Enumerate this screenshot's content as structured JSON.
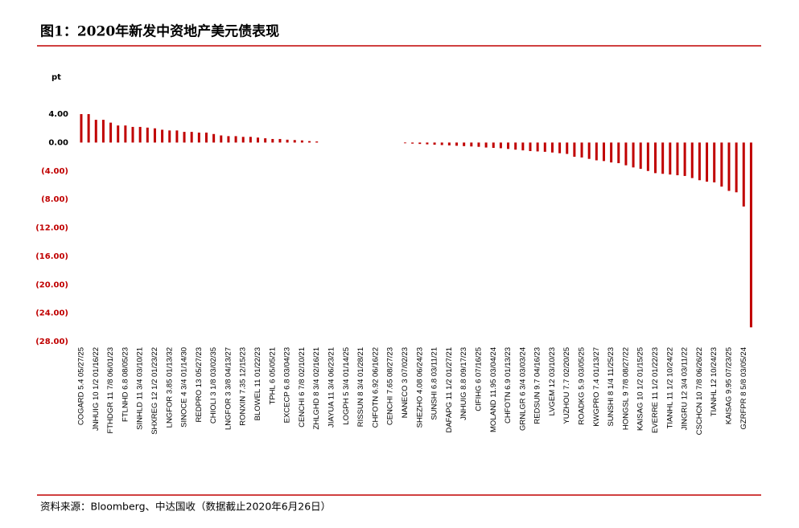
{
  "chart_data": {
    "type": "bar",
    "title": "图1：2020年新发中资地产美元债表现",
    "y_label": "pt",
    "source": "资料来源：Bloomberg、中达国收（数据截止2020年6月26日）",
    "color": "#c00000",
    "categories": [
      "COGARD 5.4 05/27/25",
      null,
      "JNHUIG 10 1/2 01/16/22",
      null,
      "FTHDGR 11 7/8 06/01/23",
      null,
      "FTLNHD 6.8 08/05/23",
      null,
      "SINHLD 11 3/4 03/10/21",
      null,
      "SHXREG 12 1/2 01/23/22",
      null,
      "LNGFOR 3.85 01/13/32",
      null,
      "SINOCE 4 3/4 01/14/30",
      null,
      "REDPRO 13 05/27/23",
      null,
      "CHIOLI 3 1/8 03/02/35",
      null,
      "LNGFOR 3 3/8 04/13/27",
      null,
      "RONXIN 7.35 12/15/23",
      null,
      "BLOWEL 11 01/22/23",
      null,
      "TPHL 6 05/05/21",
      null,
      "EXCECP 6.8 03/04/23",
      null,
      "CENCHI 6 7/8 02/10/21",
      null,
      "ZHLGHD 8 3/4 02/16/21",
      null,
      "JIAYUA 11 3/4 06/23/21",
      null,
      "LOGPH 5 3/4 01/14/25",
      null,
      "RISSUN 8 3/4 01/28/21",
      null,
      "CHFOTN 6.92 06/16/22",
      null,
      "CENCHI 7.65 08/27/23",
      null,
      "NANECO 3 07/02/23",
      null,
      "SHEZHO 4.08 06/24/23",
      null,
      "SUNSHI 6.8 03/11/21",
      null,
      "DAFAPG 11 1/2 01/27/21",
      null,
      "JNHUIG 8.8 09/17/23",
      null,
      "CIFIHG 6 07/16/25",
      null,
      "MOLAND 11.95 03/04/24",
      null,
      "CHFOTN 6.9 01/13/23",
      null,
      "GRNLGR 6 3/4 03/03/24",
      null,
      "REDSUN 9.7 04/16/23",
      null,
      "LVGEM 12 03/10/23",
      null,
      "YUZHOU 7.7 02/20/25",
      null,
      "ROADKG 5.9 03/05/25",
      null,
      "KWGPRO 7.4 01/13/27",
      null,
      "SUNSHI 8 1/4 11/25/23",
      null,
      "HONGSL 9 7/8 08/27/22",
      null,
      "KAISAG 10 1/2 01/15/25",
      null,
      "EVERRE 11 1/2 01/22/23",
      null,
      "TIANHL 11 1/2 10/24/22",
      null,
      "JINGRU 12 3/4 03/11/22",
      null,
      "CSCHCN 10 7/8 06/26/22",
      null,
      "TIANHL 12 10/24/23",
      null,
      "KAISAG 9.95 07/23/25",
      null,
      "GZRFPR 8 5/8 03/05/24",
      null
    ],
    "values": [
      4.0,
      4.0,
      3.2,
      3.2,
      2.8,
      2.4,
      2.4,
      2.2,
      2.2,
      2.1,
      2.0,
      1.8,
      1.7,
      1.7,
      1.5,
      1.5,
      1.4,
      1.4,
      1.2,
      1.0,
      0.9,
      0.9,
      0.8,
      0.8,
      0.7,
      0.6,
      0.5,
      0.5,
      0.4,
      0.35,
      0.3,
      0.2,
      0.15,
      0,
      0,
      0,
      0,
      0,
      0,
      0,
      0,
      0,
      0,
      0,
      -0.1,
      -0.15,
      -0.2,
      -0.25,
      -0.3,
      -0.35,
      -0.4,
      -0.45,
      -0.5,
      -0.55,
      -0.6,
      -0.7,
      -0.75,
      -0.8,
      -0.9,
      -1.0,
      -1.1,
      -1.2,
      -1.25,
      -1.3,
      -1.4,
      -1.5,
      -1.6,
      -2.0,
      -2.1,
      -2.3,
      -2.5,
      -2.6,
      -2.8,
      -2.9,
      -3.2,
      -3.5,
      -3.7,
      -4.0,
      -4.3,
      -4.4,
      -4.5,
      -4.6,
      -4.7,
      -5.0,
      -5.3,
      -5.5,
      -5.6,
      -6.2,
      -6.8,
      -7.0,
      -9.0,
      -26.0
    ],
    "ylim": [
      -28,
      4
    ],
    "yticks": [
      {
        "value": 4,
        "label": "4.00"
      },
      {
        "value": 0,
        "label": "0.00"
      },
      {
        "value": -4,
        "label": "(4.00)"
      },
      {
        "value": -8,
        "label": "(8.00)"
      },
      {
        "value": -12,
        "label": "(12.00)"
      },
      {
        "value": -16,
        "label": "(16.00)"
      },
      {
        "value": -20,
        "label": "(20.00)"
      },
      {
        "value": -24,
        "label": "(24.00)"
      },
      {
        "value": -28,
        "label": "(28.00)"
      }
    ]
  }
}
